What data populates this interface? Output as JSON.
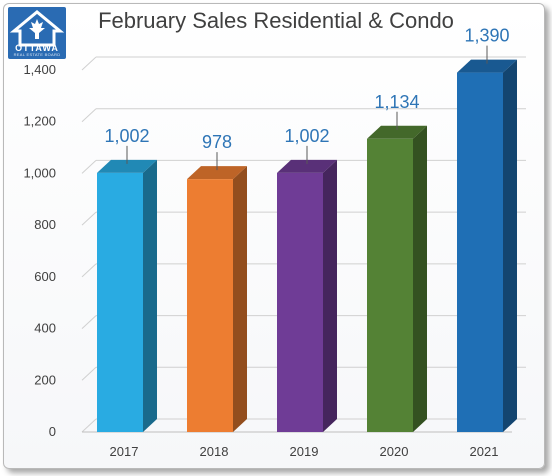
{
  "title": "February Sales Residential & Condo",
  "logo": {
    "word": "OTTAWA",
    "subtitle": "REAL ESTATE BOARD"
  },
  "chart_data": {
    "type": "bar",
    "title": "February Sales Residential & Condo",
    "xlabel": "",
    "ylabel": "",
    "categories": [
      "2017",
      "2018",
      "2019",
      "2020",
      "2021"
    ],
    "values": [
      1002,
      978,
      1002,
      1134,
      1390
    ],
    "data_labels": [
      "1,002",
      "978",
      "1,002",
      "1,134",
      "1,390"
    ],
    "ylim": [
      0,
      1400
    ],
    "yticks": [
      0,
      200,
      400,
      600,
      800,
      1000,
      1200,
      1400
    ],
    "ytick_labels": [
      "0",
      "200",
      "400",
      "600",
      "800",
      "1,000",
      "1,200",
      "1,400"
    ],
    "grid": true,
    "legend": "none",
    "style": "3d",
    "colors": [
      "#29abe2",
      "#ed7d31",
      "#6f3c96",
      "#548235",
      "#1f6fb5"
    ]
  }
}
